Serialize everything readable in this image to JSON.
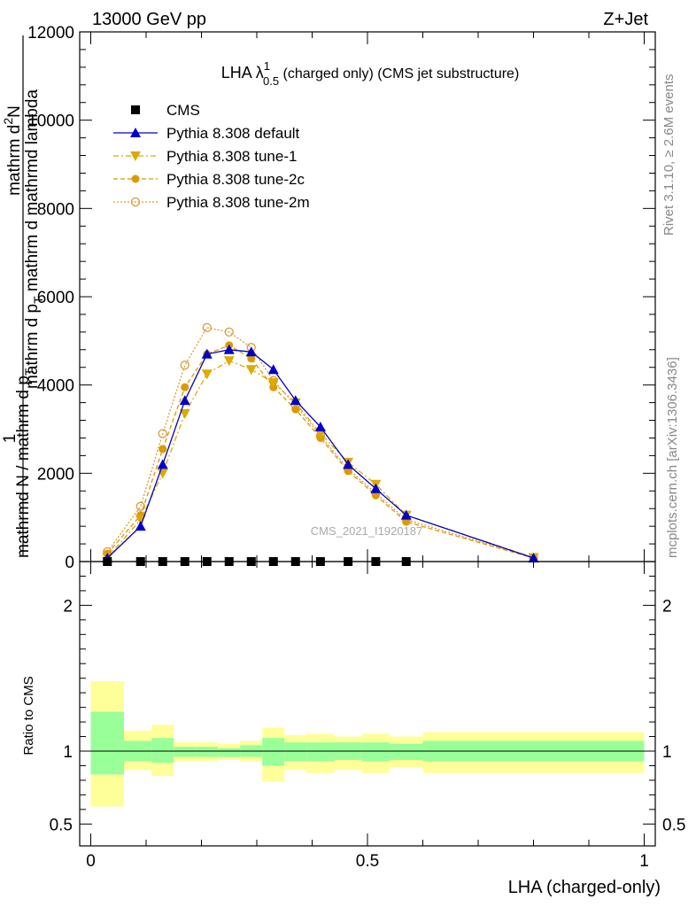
{
  "header": {
    "left": "13000 GeV pp",
    "right": "Z+Jet"
  },
  "side_labels": {
    "rivet": "Rivet 3.1.10, ≥ 2.6M events",
    "mcplots": "mcplots.cern.ch [arXiv:1306.3436]"
  },
  "watermark": "CMS_2021_I1920187",
  "colors": {
    "default": "#0000cc",
    "tune1": "#ddaa00",
    "tune2c": "#dd9900",
    "tune2m": "#dd9933",
    "band_inner": "#99ff99",
    "band_outer": "#ffff99"
  },
  "chart_data": [
    {
      "type": "line",
      "title_main": "LHA λ",
      "title_sup": "1",
      "title_sub": "0.5",
      "title_rest": " (charged only) (CMS jet substructure)",
      "ylabel_top": "mathrm d",
      "ylabel_top_sup": "2",
      "ylabel_top_n": "N",
      "ylabel_frac_den": "mathrm d p",
      "ylabel_frac_den_sub": "T",
      "ylabel_frac_den_rest": " mathrm d mathrmd lambda",
      "ylabel_one": "1",
      "ylabel_bottom": "mathrmd N / mathrm d p",
      "ylabel_bottom_sub": "T",
      "xlim": [
        -0.02,
        1.02
      ],
      "ylim": [
        0,
        12000
      ],
      "yticks": [
        0,
        2000,
        4000,
        6000,
        8000,
        10000,
        12000
      ],
      "ytick_labels": [
        "0",
        "2000",
        "4000",
        "6000",
        "8000",
        "10000",
        "12000"
      ],
      "legend_position": "top-left",
      "legend": [
        "CMS",
        "Pythia 8.308 default",
        "Pythia 8.308 tune-1",
        "Pythia 8.308 tune-2c",
        "Pythia 8.308 tune-2m"
      ],
      "series": [
        {
          "name": "CMS",
          "marker": "square",
          "x": [
            0.03,
            0.09,
            0.13,
            0.17,
            0.21,
            0.25,
            0.29,
            0.33,
            0.37,
            0.415,
            0.465,
            0.515,
            0.57
          ],
          "y": [
            0,
            0,
            0,
            0,
            0,
            0,
            0,
            0,
            0,
            0,
            0,
            0,
            0
          ]
        },
        {
          "name": "Pythia 8.308 default",
          "marker": "triangle-up",
          "x": [
            0.03,
            0.09,
            0.13,
            0.17,
            0.21,
            0.25,
            0.29,
            0.33,
            0.37,
            0.415,
            0.465,
            0.515,
            0.57,
            0.8
          ],
          "y": [
            80,
            800,
            2200,
            3650,
            4700,
            4800,
            4750,
            4350,
            3650,
            3050,
            2200,
            1650,
            1050,
            80
          ]
        },
        {
          "name": "Pythia 8.308 tune-1",
          "marker": "triangle-down",
          "x": [
            0.03,
            0.09,
            0.13,
            0.17,
            0.21,
            0.25,
            0.29,
            0.33,
            0.37,
            0.415,
            0.465,
            0.515,
            0.57,
            0.8
          ],
          "y": [
            90,
            950,
            2000,
            3350,
            4250,
            4550,
            4350,
            4050,
            3600,
            2900,
            2250,
            1750,
            1050,
            90
          ]
        },
        {
          "name": "Pythia 8.308 tune-2c",
          "marker": "circle",
          "x": [
            0.03,
            0.09,
            0.13,
            0.17,
            0.21,
            0.25,
            0.29,
            0.33,
            0.37,
            0.415,
            0.465,
            0.515,
            0.57,
            0.8
          ],
          "y": [
            180,
            1050,
            2550,
            3950,
            4700,
            4900,
            4600,
            3950,
            3450,
            2800,
            2050,
            1500,
            900,
            80
          ]
        },
        {
          "name": "Pythia 8.308 tune-2m",
          "marker": "circle-open",
          "x": [
            0.03,
            0.09,
            0.13,
            0.17,
            0.21,
            0.25,
            0.29,
            0.33,
            0.37,
            0.415,
            0.465,
            0.515,
            0.57,
            0.8
          ],
          "y": [
            220,
            1250,
            2900,
            4450,
            5300,
            5200,
            4850,
            4100,
            3550,
            2850,
            2100,
            1550,
            950,
            90
          ]
        }
      ]
    },
    {
      "type": "area",
      "ylabel": "Ratio to CMS",
      "xlabel": "LHA (charged-only)",
      "xlim": [
        -0.02,
        1.02
      ],
      "ylim": [
        0.35,
        2.3
      ],
      "xticks": [
        0,
        0.5,
        1
      ],
      "xtick_labels": [
        "0",
        "0.5",
        "1"
      ],
      "yticks": [
        0.5,
        1,
        2
      ],
      "ytick_labels": [
        "0.5",
        "1",
        "2"
      ],
      "bins": [
        {
          "lo": 0.0,
          "hi": 0.06,
          "inner": [
            0.84,
            1.27
          ],
          "outer": [
            0.62,
            1.48
          ]
        },
        {
          "lo": 0.06,
          "hi": 0.11,
          "inner": [
            0.93,
            1.07
          ],
          "outer": [
            0.87,
            1.14
          ]
        },
        {
          "lo": 0.11,
          "hi": 0.15,
          "inner": [
            0.92,
            1.09
          ],
          "outer": [
            0.83,
            1.18
          ]
        },
        {
          "lo": 0.15,
          "hi": 0.19,
          "inner": [
            0.96,
            1.03
          ],
          "outer": [
            0.93,
            1.06
          ]
        },
        {
          "lo": 0.19,
          "hi": 0.23,
          "inner": [
            0.96,
            1.03
          ],
          "outer": [
            0.93,
            1.06
          ]
        },
        {
          "lo": 0.23,
          "hi": 0.27,
          "inner": [
            0.96,
            1.02
          ],
          "outer": [
            0.94,
            1.05
          ]
        },
        {
          "lo": 0.27,
          "hi": 0.31,
          "inner": [
            0.96,
            1.04
          ],
          "outer": [
            0.93,
            1.07
          ]
        },
        {
          "lo": 0.31,
          "hi": 0.35,
          "inner": [
            0.9,
            1.09
          ],
          "outer": [
            0.79,
            1.16
          ]
        },
        {
          "lo": 0.35,
          "hi": 0.39,
          "inner": [
            0.93,
            1.06
          ],
          "outer": [
            0.87,
            1.11
          ]
        },
        {
          "lo": 0.39,
          "hi": 0.44,
          "inner": [
            0.93,
            1.06
          ],
          "outer": [
            0.85,
            1.12
          ]
        },
        {
          "lo": 0.44,
          "hi": 0.49,
          "inner": [
            0.94,
            1.06
          ],
          "outer": [
            0.87,
            1.1
          ]
        },
        {
          "lo": 0.49,
          "hi": 0.54,
          "inner": [
            0.93,
            1.06
          ],
          "outer": [
            0.85,
            1.12
          ]
        },
        {
          "lo": 0.54,
          "hi": 0.6,
          "inner": [
            0.94,
            1.05
          ],
          "outer": [
            0.89,
            1.1
          ]
        },
        {
          "lo": 0.6,
          "hi": 1.0,
          "inner": [
            0.93,
            1.07
          ],
          "outer": [
            0.85,
            1.13
          ]
        }
      ],
      "reference_line": 1
    }
  ]
}
